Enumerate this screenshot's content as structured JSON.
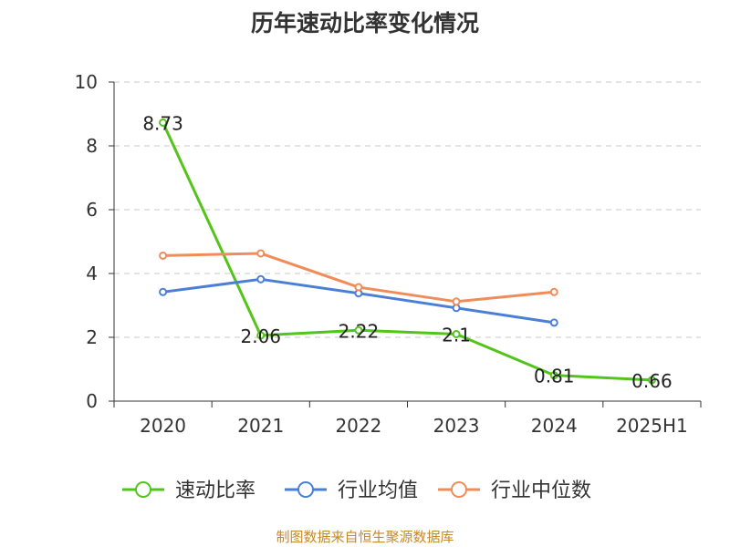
{
  "title": "历年速动比率变化情况",
  "source_note": "制图数据来自恒生聚源数据库",
  "chart_data": {
    "type": "line",
    "categories": [
      "2020",
      "2021",
      "2022",
      "2023",
      "2024",
      "2025H1"
    ],
    "ylim": [
      0,
      10
    ],
    "yticks": [
      0,
      2,
      4,
      6,
      8,
      10
    ],
    "grid": true,
    "legend_position": "bottom",
    "series": [
      {
        "name": "速动比率",
        "color": "#52c41a",
        "values": [
          8.73,
          2.06,
          2.22,
          2.1,
          0.81,
          0.66
        ],
        "labels": [
          "8.73",
          "2.06",
          "2.22",
          "2.1",
          "0.81",
          "0.66"
        ]
      },
      {
        "name": "行业均值",
        "color": "#4a7fd8",
        "values": [
          3.42,
          3.82,
          3.38,
          2.92,
          2.46,
          null
        ]
      },
      {
        "name": "行业中位数",
        "color": "#f08c5a",
        "values": [
          4.56,
          4.63,
          3.57,
          3.12,
          3.42,
          null
        ]
      }
    ]
  }
}
